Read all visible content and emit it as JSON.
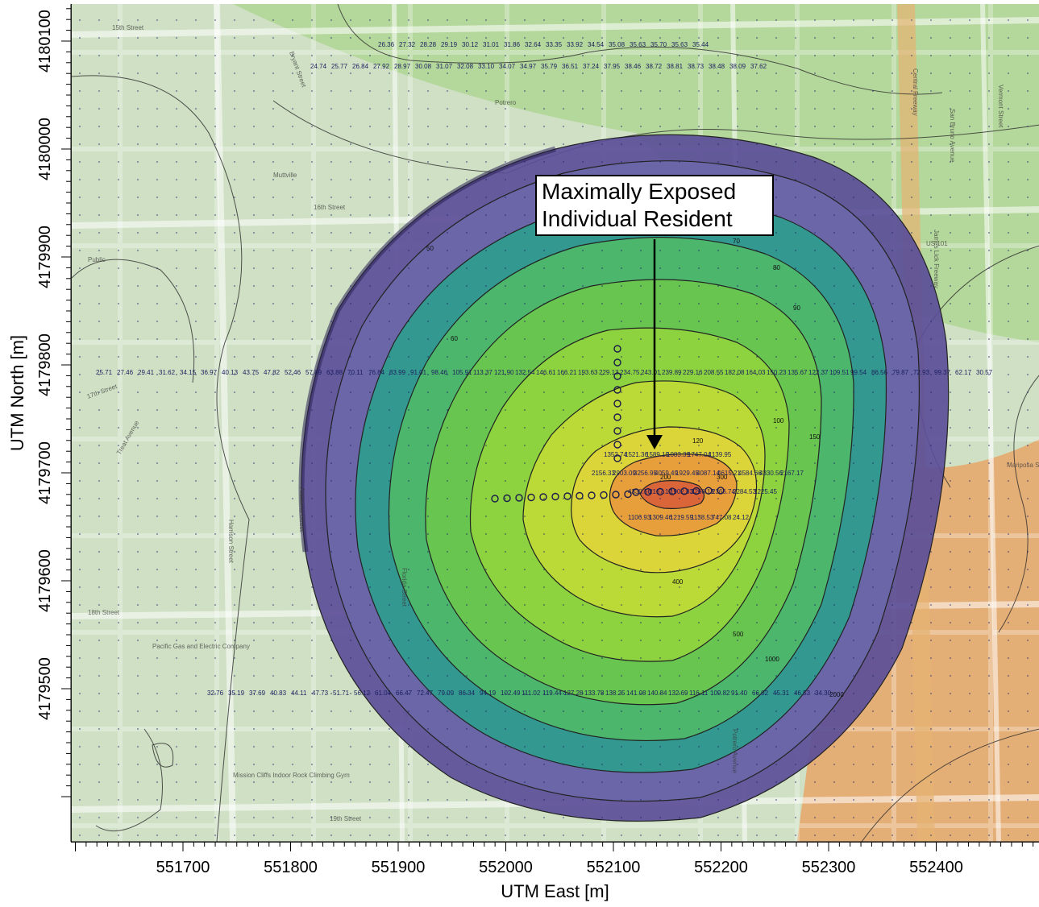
{
  "title": "",
  "axes": {
    "xlabel": "UTM East [m]",
    "ylabel": "UTM North [m]",
    "x_ticks": [
      "551700",
      "551800",
      "551900",
      "552000",
      "552100",
      "552200",
      "552300",
      "552400"
    ],
    "y_ticks": [
      "4180100",
      "4180000",
      "4179900",
      "4179800",
      "4179700",
      "4179600",
      "4179500"
    ]
  },
  "annotation": {
    "line1": "Maximally Exposed",
    "line2": "Individual Resident"
  },
  "street_labels": [
    "15th Street",
    "16th Street",
    "17th Street",
    "18th Street",
    "19th Street",
    "Mariposa Street",
    "Harrison Street",
    "Treat Avenue",
    "Alabama Street",
    "Florida Street",
    "Bryant Street",
    "Potrero Avenue",
    "San Bruno Avenue",
    "Vermont Street",
    "James Lick Freeway",
    "Central Freeway",
    "US 101",
    "Public",
    "Mission Cliffs Indoor Rock Climbing Gym",
    "Pacific Gas and Electric Company",
    "Potrero",
    "Muttville"
  ],
  "contour_labels": [
    "50",
    "60",
    "70",
    "80",
    "90",
    "100",
    "120",
    "150",
    "200",
    "300",
    "400",
    "500",
    "1000",
    "2000"
  ],
  "receptor_values": [
    "26.36",
    "27.32",
    "28.28",
    "29.19",
    "30.12",
    "31.01",
    "31.86",
    "32.64",
    "33.35",
    "33.92",
    "34.54",
    "35.08",
    "35.63",
    "35.70",
    "35.63",
    "35.44",
    "24.74",
    "25.77",
    "26.84",
    "27.92",
    "28.97",
    "30.08",
    "31.07",
    "32.08",
    "33.10",
    "34.07",
    "34.97",
    "35.79",
    "36.51",
    "37.24",
    "37.95",
    "38.46",
    "38.72",
    "38.81",
    "38.73",
    "38.48",
    "38.09",
    "37.62",
    "1352.74",
    "1521.36",
    "1589.19",
    "1083.39",
    "1747.04",
    "1139.95",
    "2156.33",
    "2903.09",
    "3256.95",
    "4059.49",
    "1929.45",
    "4087.14",
    "4615.21",
    "4584.66",
    "4330.56",
    "2167.17",
    "1902.83",
    "2266.18",
    "2366.74",
    "2284.53",
    "1225.45",
    "1106.93",
    "1309.46",
    "1219.59",
    "1138.53",
    "747.08",
    "24.12",
    "25.71",
    "27.46",
    "29.41",
    "31.62",
    "34.15",
    "36.97",
    "40.13",
    "43.75",
    "47.82",
    "52.46",
    "57.89",
    "63.88",
    "70.11",
    "76.84",
    "83.99",
    "91.01",
    "98.46",
    "105.91",
    "113.37",
    "121.90",
    "132.54",
    "146.61",
    "166.21",
    "193.63",
    "229.13",
    "234.75",
    "243.01",
    "239.89",
    "229.16",
    "208.55",
    "182.08",
    "164.03",
    "150.23",
    "135.67",
    "122.37",
    "109.51",
    "99.54",
    "86.56",
    "79.87",
    "72.93",
    "99.37",
    "62.17",
    "30.57",
    "32.76",
    "35.19",
    "37.69",
    "40.83",
    "44.11",
    "47.73",
    "51.71",
    "56.12",
    "61.04",
    "66.47",
    "72.47",
    "79.09",
    "86.34",
    "94.19",
    "102.49",
    "111.02",
    "119.44",
    "127.28",
    "133.78",
    "138.25",
    "141.08",
    "140.84",
    "132.69",
    "116.11",
    "109.82",
    "91.40",
    "66.02",
    "45.31",
    "46.53",
    "34.30"
  ],
  "colors": {
    "base_map": "#cfe0c4",
    "outer_plume": "#5b4e98",
    "band_40": "#6a67a8",
    "band_60": "#2f9d8e",
    "band_80": "#4eb86a",
    "band_100": "#6ac74e",
    "band_150": "#8fd43e",
    "band_300": "#c0da36",
    "band_1000": "#ddd53a",
    "peak": "#e89a3c",
    "hot_spot": "#d9603a",
    "background_tint_green": "#9ed07a",
    "background_tint_orange": "#e8a56a"
  }
}
